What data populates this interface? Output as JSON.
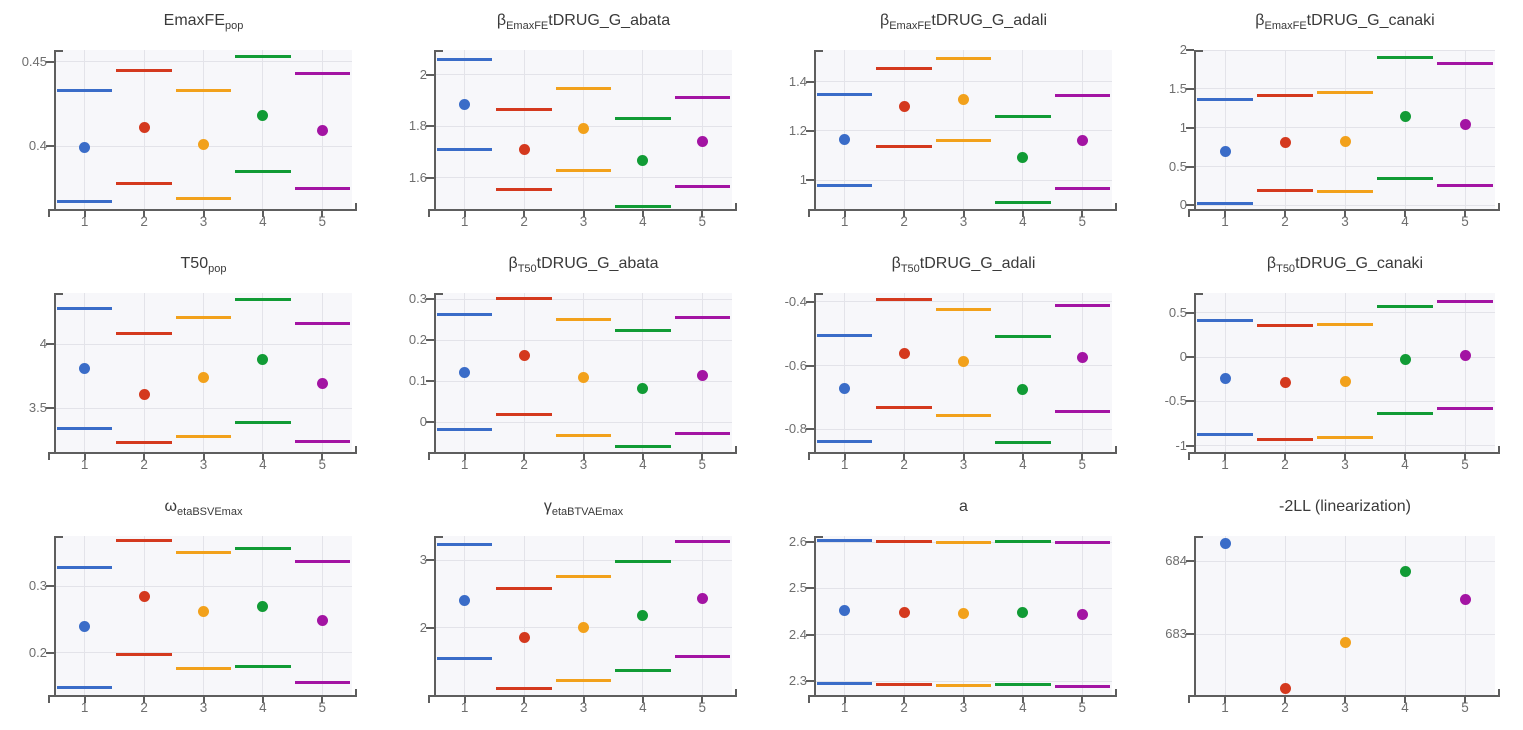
{
  "palette": {
    "run_colors": [
      "#3a6cc8",
      "#d4391e",
      "#f2a11b",
      "#119b35",
      "#a314a3"
    ],
    "plot_background": "#f7f7fa",
    "gridline": "#e3e3e9",
    "axis": "#5e5e5e",
    "tick_text": "#6e6e6e",
    "title_text": "#3a3a3a"
  },
  "chart_data": [
    {
      "id": "EmaxFE_pop",
      "type": "scatter",
      "title": "EmaxFE_pop",
      "title_parts": [
        {
          "text": "EmaxFE",
          "sub": false
        },
        {
          "text": "pop",
          "sub": true
        }
      ],
      "x": [
        1,
        2,
        3,
        4,
        5
      ],
      "xtick_labels": [
        "1",
        "2",
        "3",
        "4",
        "5"
      ],
      "xlim": [
        0.5,
        5.5
      ],
      "ylim": [
        0.362,
        0.457
      ],
      "yticks": [
        0.4,
        0.45
      ],
      "ytick_labels": [
        "0.4",
        "0.45"
      ],
      "values": [
        0.399,
        0.411,
        0.401,
        0.418,
        0.409
      ],
      "upper": [
        0.433,
        0.445,
        0.433,
        0.453,
        0.443
      ],
      "lower": [
        0.367,
        0.378,
        0.369,
        0.385,
        0.375
      ]
    },
    {
      "id": "beta_EmaxFE_tDRUG_G_abata",
      "type": "scatter",
      "title": "β_EmaxFE tDRUG_G_abata",
      "title_parts": [
        {
          "text": "β",
          "sub": false
        },
        {
          "text": "EmaxFE",
          "sub": true
        },
        {
          "text": "tDRUG_G_abata",
          "sub": false
        }
      ],
      "x": [
        1,
        2,
        3,
        4,
        5
      ],
      "xtick_labels": [
        "1",
        "2",
        "3",
        "4",
        "5"
      ],
      "xlim": [
        0.5,
        5.5
      ],
      "ylim": [
        1.475,
        2.095
      ],
      "yticks": [
        1.6,
        1.8,
        2
      ],
      "ytick_labels": [
        "1.6",
        "1.8",
        "2"
      ],
      "values": [
        1.885,
        1.71,
        1.79,
        1.665,
        1.74
      ],
      "upper": [
        2.06,
        1.865,
        1.945,
        1.83,
        1.91
      ],
      "lower": [
        1.71,
        1.555,
        1.63,
        1.49,
        1.565
      ]
    },
    {
      "id": "beta_EmaxFE_tDRUG_G_adali",
      "type": "scatter",
      "title": "β_EmaxFE tDRUG_G_adali",
      "title_parts": [
        {
          "text": "β",
          "sub": false
        },
        {
          "text": "EmaxFE",
          "sub": true
        },
        {
          "text": "tDRUG_G_adali",
          "sub": false
        }
      ],
      "x": [
        1,
        2,
        3,
        4,
        5
      ],
      "xtick_labels": [
        "1",
        "2",
        "3",
        "4",
        "5"
      ],
      "xlim": [
        0.5,
        5.5
      ],
      "ylim": [
        0.878,
        1.53
      ],
      "yticks": [
        1,
        1.2,
        1.4
      ],
      "ytick_labels": [
        "1",
        "1.2",
        "1.4"
      ],
      "values": [
        1.165,
        1.3,
        1.33,
        1.09,
        1.16
      ],
      "upper": [
        1.347,
        1.455,
        1.495,
        1.26,
        1.343
      ],
      "lower": [
        0.978,
        1.138,
        1.163,
        0.908,
        0.965
      ]
    },
    {
      "id": "beta_EmaxFE_tDRUG_G_canaki",
      "type": "scatter",
      "title": "β_EmaxFE tDRUG_G_canaki",
      "title_parts": [
        {
          "text": "β",
          "sub": false
        },
        {
          "text": "EmaxFE",
          "sub": true
        },
        {
          "text": "tDRUG_G_canaki",
          "sub": false
        }
      ],
      "x": [
        1,
        2,
        3,
        4,
        5
      ],
      "xtick_labels": [
        "1",
        "2",
        "3",
        "4",
        "5"
      ],
      "xlim": [
        0.5,
        5.5
      ],
      "ylim": [
        -0.06,
        2.0
      ],
      "yticks": [
        0,
        0.5,
        1,
        1.5,
        2
      ],
      "ytick_labels": [
        "0",
        "0.5",
        "1",
        "1.5",
        "2"
      ],
      "values": [
        0.69,
        0.81,
        0.82,
        1.14,
        1.04
      ],
      "upper": [
        1.36,
        1.42,
        1.45,
        1.9,
        1.82
      ],
      "lower": [
        0.02,
        0.19,
        0.18,
        0.34,
        0.25
      ]
    },
    {
      "id": "T50_pop",
      "type": "scatter",
      "title": "T50_pop",
      "title_parts": [
        {
          "text": "T50",
          "sub": false
        },
        {
          "text": "pop",
          "sub": true
        }
      ],
      "x": [
        1,
        2,
        3,
        4,
        5
      ],
      "xtick_labels": [
        "1",
        "2",
        "3",
        "4",
        "5"
      ],
      "xlim": [
        0.5,
        5.5
      ],
      "ylim": [
        3.15,
        4.4
      ],
      "yticks": [
        3.5,
        4
      ],
      "ytick_labels": [
        "3.5",
        "4"
      ],
      "values": [
        3.81,
        3.61,
        3.74,
        3.88,
        3.69
      ],
      "upper": [
        4.28,
        4.08,
        4.21,
        4.35,
        4.16
      ],
      "lower": [
        3.34,
        3.23,
        3.28,
        3.39,
        3.24
      ]
    },
    {
      "id": "beta_T50_tDRUG_G_abata",
      "type": "scatter",
      "title": "β_T50 tDRUG_G_abata",
      "title_parts": [
        {
          "text": "β",
          "sub": false
        },
        {
          "text": "T50",
          "sub": true
        },
        {
          "text": "tDRUG_G_abata",
          "sub": false
        }
      ],
      "x": [
        1,
        2,
        3,
        4,
        5
      ],
      "xtick_labels": [
        "1",
        "2",
        "3",
        "4",
        "5"
      ],
      "xlim": [
        0.5,
        5.5
      ],
      "ylim": [
        -0.075,
        0.315
      ],
      "yticks": [
        0,
        0.1,
        0.2,
        0.3
      ],
      "ytick_labels": [
        "0",
        "0.1",
        "0.2",
        "0.3"
      ],
      "values": [
        0.122,
        0.162,
        0.108,
        0.082,
        0.113
      ],
      "upper": [
        0.262,
        0.301,
        0.25,
        0.223,
        0.256
      ],
      "lower": [
        -0.018,
        0.018,
        -0.033,
        -0.058,
        -0.028
      ]
    },
    {
      "id": "beta_T50_tDRUG_G_adali",
      "type": "scatter",
      "title": "β_T50 tDRUG_G_adali",
      "title_parts": [
        {
          "text": "β",
          "sub": false
        },
        {
          "text": "T50",
          "sub": true
        },
        {
          "text": "tDRUG_G_adali",
          "sub": false
        }
      ],
      "x": [
        1,
        2,
        3,
        4,
        5
      ],
      "xtick_labels": [
        "1",
        "2",
        "3",
        "4",
        "5"
      ],
      "xlim": [
        0.5,
        5.5
      ],
      "ylim": [
        -0.875,
        -0.372
      ],
      "yticks": [
        -0.8,
        -0.6,
        -0.4
      ],
      "ytick_labels": [
        "-0.8",
        "-0.6",
        "-0.4"
      ],
      "values": [
        -0.672,
        -0.562,
        -0.588,
        -0.676,
        -0.575
      ],
      "upper": [
        -0.505,
        -0.394,
        -0.424,
        -0.508,
        -0.412
      ],
      "lower": [
        -0.84,
        -0.732,
        -0.756,
        -0.843,
        -0.744
      ]
    },
    {
      "id": "beta_T50_tDRUG_G_canaki",
      "type": "scatter",
      "title": "β_T50 tDRUG_G_canaki",
      "title_parts": [
        {
          "text": "β",
          "sub": false
        },
        {
          "text": "T50",
          "sub": true
        },
        {
          "text": "tDRUG_G_canaki",
          "sub": false
        }
      ],
      "x": [
        1,
        2,
        3,
        4,
        5
      ],
      "xtick_labels": [
        "1",
        "2",
        "3",
        "4",
        "5"
      ],
      "xlim": [
        0.5,
        5.5
      ],
      "ylim": [
        -1.08,
        0.72
      ],
      "yticks": [
        -1,
        -0.5,
        0,
        0.5
      ],
      "ytick_labels": [
        "-1",
        "-0.5",
        "0",
        "0.5"
      ],
      "values": [
        -0.24,
        -0.29,
        -0.27,
        -0.03,
        0.02
      ],
      "upper": [
        0.41,
        0.35,
        0.37,
        0.57,
        0.63
      ],
      "lower": [
        -0.87,
        -0.93,
        -0.9,
        -0.64,
        -0.58
      ]
    },
    {
      "id": "omega_etaBSVEmax",
      "type": "scatter",
      "title": "ω_etaBSVEmax",
      "title_parts": [
        {
          "text": "ω",
          "sub": false
        },
        {
          "text": "etaBSVEmax",
          "sub": true
        }
      ],
      "x": [
        1,
        2,
        3,
        4,
        5
      ],
      "xtick_labels": [
        "1",
        "2",
        "3",
        "4",
        "5"
      ],
      "xlim": [
        0.5,
        5.5
      ],
      "ylim": [
        0.135,
        0.375
      ],
      "yticks": [
        0.2,
        0.3
      ],
      "ytick_labels": [
        "0.2",
        "0.3"
      ],
      "values": [
        0.239,
        0.285,
        0.262,
        0.27,
        0.248
      ],
      "upper": [
        0.328,
        0.368,
        0.35,
        0.357,
        0.337
      ],
      "lower": [
        0.148,
        0.198,
        0.176,
        0.179,
        0.156
      ]
    },
    {
      "id": "gamma_etaBTVAEmax",
      "type": "scatter",
      "title": "γ_etaBTVAEmax",
      "title_parts": [
        {
          "text": "γ",
          "sub": false
        },
        {
          "text": "etaBTVAEmax",
          "sub": true
        }
      ],
      "x": [
        1,
        2,
        3,
        4,
        5
      ],
      "xtick_labels": [
        "1",
        "2",
        "3",
        "4",
        "5"
      ],
      "xlim": [
        0.5,
        5.5
      ],
      "ylim": [
        0.99,
        3.36
      ],
      "yticks": [
        2,
        3
      ],
      "ytick_labels": [
        "2",
        "3"
      ],
      "values": [
        2.4,
        1.85,
        2.0,
        2.18,
        2.43
      ],
      "upper": [
        3.24,
        2.58,
        2.76,
        2.98,
        3.28
      ],
      "lower": [
        1.55,
        1.1,
        1.22,
        1.37,
        1.57
      ]
    },
    {
      "id": "a",
      "type": "scatter",
      "title": "a",
      "title_parts": [
        {
          "text": "a",
          "sub": false
        }
      ],
      "x": [
        1,
        2,
        3,
        4,
        5
      ],
      "xtick_labels": [
        "1",
        "2",
        "3",
        "4",
        "5"
      ],
      "xlim": [
        0.5,
        5.5
      ],
      "ylim": [
        2.268,
        2.613
      ],
      "yticks": [
        2.3,
        2.4,
        2.5,
        2.6
      ],
      "ytick_labels": [
        "2.3",
        "2.4",
        "2.5",
        "2.6"
      ],
      "values": [
        2.452,
        2.449,
        2.446,
        2.448,
        2.444
      ],
      "upper": [
        2.603,
        2.601,
        2.599,
        2.601,
        2.598
      ],
      "lower": [
        2.295,
        2.293,
        2.291,
        2.292,
        2.289
      ]
    },
    {
      "id": "minus2LL_linearization",
      "type": "scatter",
      "title": "-2LL (linearization)",
      "title_parts": [
        {
          "text": "-2LL (linearization)",
          "sub": false
        }
      ],
      "x": [
        1,
        2,
        3,
        4,
        5
      ],
      "xtick_labels": [
        "1",
        "2",
        "3",
        "4",
        "5"
      ],
      "xlim": [
        0.5,
        5.5
      ],
      "ylim": [
        682.15,
        684.35
      ],
      "yticks": [
        683,
        684
      ],
      "ytick_labels": [
        "683",
        "684"
      ],
      "values": [
        684.25,
        682.25,
        682.88,
        683.86,
        683.48
      ],
      "upper": null,
      "lower": null
    }
  ]
}
